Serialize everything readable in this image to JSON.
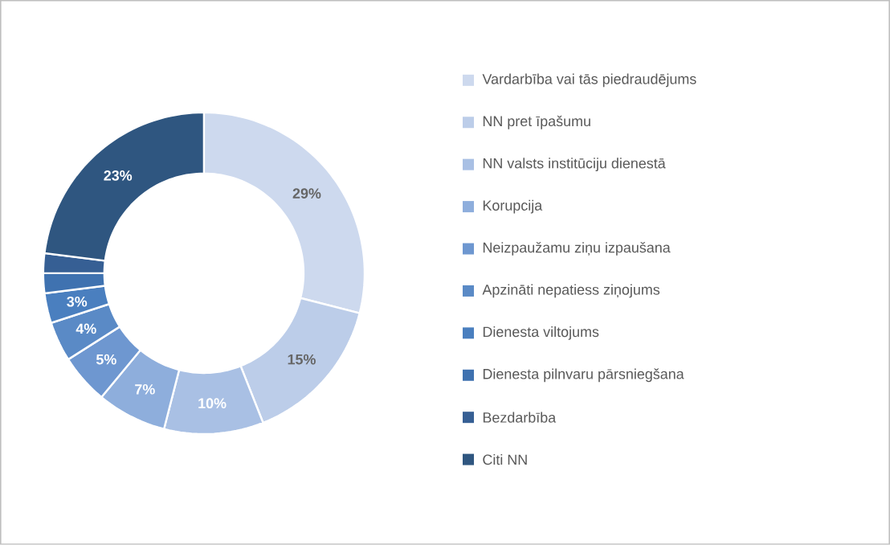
{
  "chart_data": {
    "type": "donut",
    "categories": [
      "Vardarbība vai tās piedraudējums",
      "NN pret īpašumu",
      "NN valsts institūciju dienestā",
      "Korupcija",
      "Neizpaužamu ziņu izpaušana",
      "Apzināti nepatiess ziņojums",
      "Dienesta viltojums",
      "Dienesta pilnvaru pārsniegšana",
      "Bezdarbība",
      "Citi NN"
    ],
    "values": [
      29,
      15,
      10,
      7,
      5,
      4,
      3,
      2,
      2,
      23
    ],
    "value_labels": [
      "29%",
      "15%",
      "10%",
      "7%",
      "5%",
      "4%",
      "3%",
      null,
      null,
      "23%"
    ],
    "colors": [
      "#cdd9ee",
      "#bccde9",
      "#a9c0e4",
      "#8eaedc",
      "#6e97d0",
      "#5a8ac6",
      "#4a7fbf",
      "#3f72b0",
      "#365f94",
      "#2f5680"
    ],
    "legend": "right"
  }
}
